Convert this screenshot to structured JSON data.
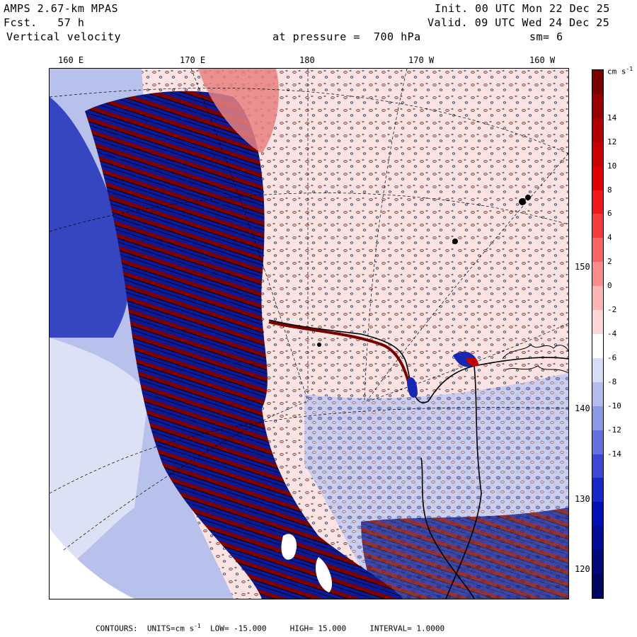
{
  "header": {
    "model": "AMPS 2.67-km MPAS",
    "fcst_label": "Fcst.",
    "fcst_value": "57 h",
    "field": "Vertical velocity",
    "init": "Init. 00 UTC Mon 22 Dec 25",
    "valid": "Valid. 09 UTC Wed 24 Dec 25",
    "pressure_label": "at pressure =",
    "pressure_value": "700 hPa",
    "smoothing": "sm= 6"
  },
  "top_ticks": [
    "160 E",
    "170 E",
    "180",
    "170 W",
    "160 W"
  ],
  "right_ticks": [
    "150 W",
    "140 W",
    "130 W",
    "120 W"
  ],
  "colorbar": {
    "units_label": "cm s",
    "units_exp": "-1",
    "labels": [
      "14",
      "12",
      "10",
      "8",
      "6",
      "4",
      "2",
      "0",
      "-2",
      "-4",
      "-6",
      "-8",
      "-10",
      "-12",
      "-14"
    ],
    "colors": [
      "#7a0000",
      "#960000",
      "#b00000",
      "#c80000",
      "#e00000",
      "#f01818",
      "#f53c3c",
      "#f86464",
      "#fa8c8c",
      "#fcb4b4",
      "#fdd7d7",
      "#ffffff",
      "#d7dcf5",
      "#b4bcee",
      "#8c99e6",
      "#6470de",
      "#3c48d4",
      "#1828c8",
      "#0010b4",
      "#000c96",
      "#00087a",
      "#000660"
    ]
  },
  "footer": {
    "contours": "CONTOURS:",
    "units_pre": "UNITS=cm s",
    "units_exp": "-1",
    "low": "LOW= -15.000",
    "high": "HIGH= 15.000",
    "interval": "INTERVAL= 1.0000"
  },
  "map": {
    "name": "vertical velocity field over Ross Sea / Ross Ice Shelf sector",
    "wave_band_color": "#8b0000",
    "negative_color": "#1428b4",
    "light_negative_color": "#c8ceee",
    "positive_light_color": "#f8dcdc"
  }
}
